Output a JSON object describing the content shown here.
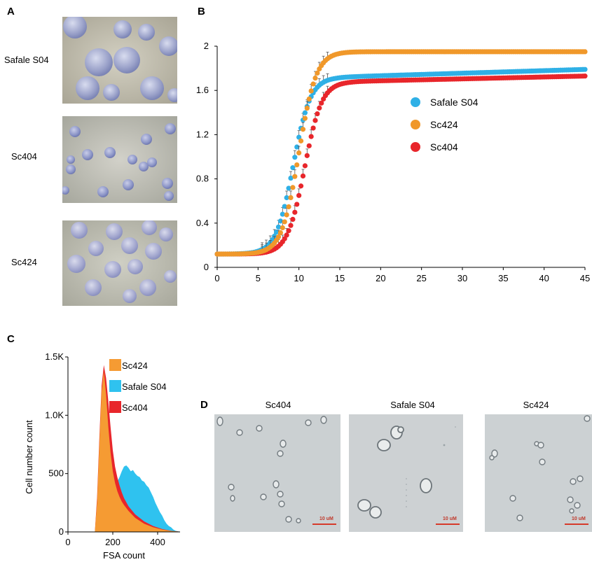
{
  "panels": {
    "a": "A",
    "b": "B",
    "c": "C",
    "d": "D"
  },
  "panel_a": {
    "labels": [
      "Safale S04",
      "Sc404",
      "Sc424"
    ]
  },
  "panel_d": {
    "labels": [
      "Sc404",
      "Safale S04",
      "Sc424"
    ],
    "scalebar": "10 uM"
  },
  "colors": {
    "safale": "#2fb0e6",
    "sc424": "#f0982a",
    "sc404": "#e8262b"
  },
  "chart_data": [
    {
      "type": "scatter",
      "title": "",
      "xlabel": "",
      "ylabel": "",
      "xlim": [
        0,
        45
      ],
      "ylim": [
        0,
        2
      ],
      "xticks": [
        0,
        5,
        10,
        15,
        20,
        25,
        30,
        35,
        40,
        45
      ],
      "yticks": [
        0,
        0.4,
        0.8,
        1.2,
        1.6,
        2
      ],
      "ytick_labels": [
        "0",
        "0.4",
        "0.8",
        "1.2",
        "1.6",
        "2"
      ],
      "legend": [
        "Safale S04",
        "Sc424",
        "Sc404"
      ],
      "legend_position": "right",
      "series": [
        {
          "name": "Safale S04",
          "color": "#2fb0e6",
          "plateau": 1.72,
          "end": 1.79,
          "midpoint": 9.3,
          "rate": 0.95
        },
        {
          "name": "Sc424",
          "color": "#f0982a",
          "plateau": 1.95,
          "end": 1.95,
          "midpoint": 10.0,
          "rate": 0.95
        },
        {
          "name": "Sc404",
          "color": "#e8262b",
          "plateau": 1.68,
          "end": 1.73,
          "midpoint": 10.7,
          "rate": 0.95
        }
      ],
      "baseline": 0.12,
      "error_bars": true
    },
    {
      "type": "area",
      "title": "",
      "xlabel": "FSA count",
      "ylabel": "Cell number count",
      "xlim": [
        0,
        500
      ],
      "ylim": [
        0,
        1500
      ],
      "xticks": [
        0,
        200,
        400
      ],
      "yticks": [
        0,
        500,
        1000,
        1500
      ],
      "ytick_labels": [
        "0",
        "500",
        "1.0K",
        "1.5K"
      ],
      "legend": [
        "Sc424",
        "Safale S04",
        "Sc404"
      ],
      "legend_position": "top-right",
      "series": [
        {
          "name": "Safale S04",
          "color": "#2fc2ef",
          "x": [
            120,
            130,
            140,
            150,
            160,
            170,
            180,
            190,
            200,
            210,
            220,
            230,
            240,
            250,
            260,
            270,
            280,
            290,
            300,
            310,
            320,
            330,
            340,
            350,
            360,
            370,
            380,
            390,
            400,
            410,
            420,
            430,
            440,
            450,
            460,
            470,
            480,
            490,
            500
          ],
          "y": [
            0,
            150,
            420,
            680,
            880,
            900,
            700,
            520,
            420,
            420,
            430,
            470,
            520,
            560,
            570,
            550,
            520,
            530,
            500,
            480,
            470,
            440,
            430,
            400,
            380,
            340,
            300,
            250,
            210,
            170,
            140,
            100,
            70,
            50,
            40,
            20,
            10,
            5,
            2
          ]
        },
        {
          "name": "Sc404",
          "color": "#e8262b",
          "x": [
            120,
            130,
            140,
            150,
            160,
            170,
            180,
            190,
            200,
            210,
            220,
            230,
            240,
            250,
            270,
            300,
            340,
            380,
            420,
            460,
            500
          ],
          "y": [
            0,
            300,
            800,
            1250,
            1430,
            1320,
            1120,
            900,
            700,
            560,
            470,
            400,
            340,
            290,
            220,
            150,
            90,
            50,
            25,
            10,
            2
          ]
        },
        {
          "name": "Sc424",
          "color": "#f59b33",
          "x": [
            120,
            130,
            140,
            150,
            160,
            170,
            180,
            190,
            200,
            210,
            220,
            230,
            240,
            250,
            270,
            300,
            340,
            380,
            420,
            460,
            500
          ],
          "y": [
            0,
            260,
            750,
            1200,
            1380,
            1180,
            900,
            680,
            520,
            420,
            350,
            300,
            260,
            230,
            180,
            120,
            70,
            40,
            20,
            8,
            2
          ]
        }
      ]
    }
  ]
}
